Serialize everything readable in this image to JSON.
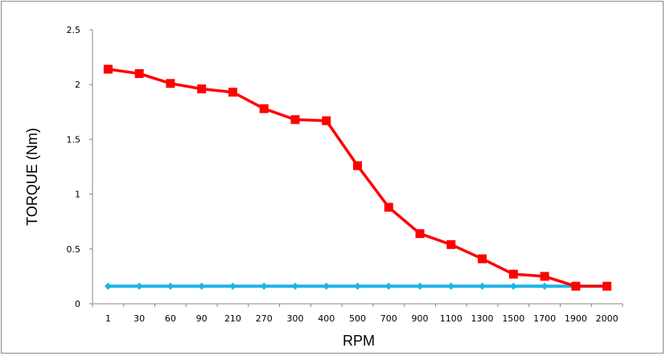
{
  "chart_data": {
    "type": "line",
    "title": "",
    "xlabel": "RPM",
    "ylabel": "TORQUE (Nm)",
    "categories": [
      "1",
      "30",
      "60",
      "90",
      "210",
      "270",
      "300",
      "400",
      "500",
      "700",
      "900",
      "1100",
      "1300",
      "1500",
      "1700",
      "1900",
      "2000"
    ],
    "ylim": [
      0,
      2.5
    ],
    "yticks": [
      "0",
      "0.5",
      "1",
      "1.5",
      "2",
      "2.5"
    ],
    "grid": false,
    "legend": "none",
    "series": [
      {
        "color": "#ff0000",
        "marker": "square",
        "values": [
          2.14,
          2.1,
          2.01,
          1.96,
          1.93,
          1.78,
          1.68,
          1.67,
          1.26,
          0.88,
          0.64,
          0.54,
          0.41,
          0.27,
          0.25,
          0.16,
          0.16
        ]
      },
      {
        "color": "#1fb4e6",
        "marker": "diamond",
        "values": [
          0.16,
          0.16,
          0.16,
          0.16,
          0.16,
          0.16,
          0.16,
          0.16,
          0.16,
          0.16,
          0.16,
          0.16,
          0.16,
          0.16,
          0.16,
          0.16,
          0.16
        ]
      }
    ]
  }
}
